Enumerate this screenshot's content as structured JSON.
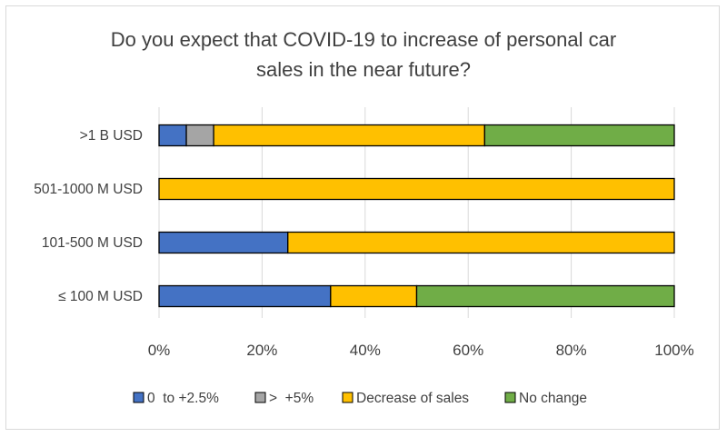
{
  "chart_data": {
    "type": "bar",
    "orientation": "horizontal",
    "stacked": "percent",
    "title": "Do you expect that COVID-19 to increase of personal car sales in the near future?",
    "title_lines": [
      "Do you expect that COVID-19 to increase of personal car",
      "sales in the near future?"
    ],
    "categories": [
      ">1 B USD",
      "501-1000 M USD",
      "101-500 M USD",
      "≤ 100 M USD"
    ],
    "series": [
      {
        "name": "0  to +2.5%",
        "color": "#4472c4",
        "values": [
          5.3,
          0,
          25,
          33.3
        ]
      },
      {
        "name": ">  +5%",
        "color": "#a5a5a5",
        "values": [
          5.3,
          0,
          0,
          0
        ]
      },
      {
        "name": "Decrease of sales",
        "color": "#ffc000",
        "values": [
          52.6,
          100,
          75,
          16.7
        ]
      },
      {
        "name": "No change",
        "color": "#70ad47",
        "values": [
          36.8,
          0,
          0,
          50
        ]
      }
    ],
    "x_ticks": [
      "0%",
      "20%",
      "40%",
      "60%",
      "80%",
      "100%"
    ],
    "xlim": [
      0,
      100
    ],
    "grid": "vertical",
    "legend_position": "bottom"
  }
}
